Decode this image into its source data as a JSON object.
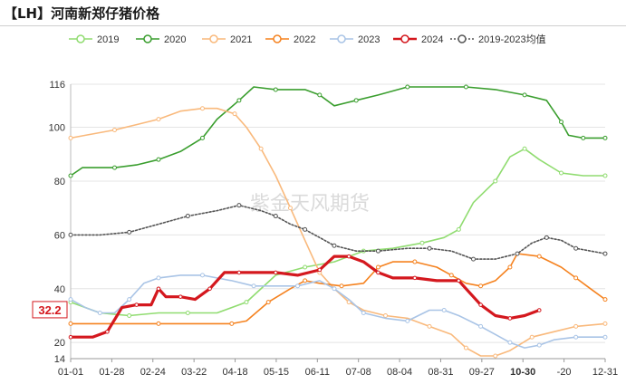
{
  "title": "【LH】河南新郑仔猪价格",
  "watermark": "紫金天风期货",
  "chart_data": {
    "type": "line",
    "title": "【LH】河南新郑仔猪价格",
    "x_ticks": [
      "01-01",
      "01-28",
      "02-24",
      "03-22",
      "04-18",
      "05-15",
      "06-11",
      "07-08",
      "08-04",
      "08-31",
      "09-27",
      "10-30",
      "-20",
      "12-31"
    ],
    "y_ticks": [
      14,
      20,
      40,
      60,
      80,
      100,
      116
    ],
    "ylim": [
      14,
      116
    ],
    "xlim": [
      0,
      365
    ],
    "grid": true,
    "legend_position": "top",
    "series": [
      {
        "name": "2019",
        "color": "#90dc70",
        "dash": false,
        "width": 1.6,
        "points": [
          [
            0,
            35
          ],
          [
            20,
            31
          ],
          [
            40,
            30
          ],
          [
            60,
            31
          ],
          [
            80,
            31
          ],
          [
            100,
            31
          ],
          [
            120,
            35
          ],
          [
            140,
            45
          ],
          [
            160,
            48
          ],
          [
            180,
            50
          ],
          [
            200,
            54
          ],
          [
            220,
            55
          ],
          [
            240,
            57
          ],
          [
            255,
            59
          ],
          [
            265,
            62
          ],
          [
            275,
            72
          ],
          [
            290,
            80
          ],
          [
            300,
            89
          ],
          [
            310,
            92
          ],
          [
            320,
            88
          ],
          [
            335,
            83
          ],
          [
            350,
            82
          ],
          [
            365,
            82
          ]
        ]
      },
      {
        "name": "2020",
        "color": "#3a9e2e",
        "dash": false,
        "width": 1.6,
        "points": [
          [
            0,
            82
          ],
          [
            8,
            85
          ],
          [
            30,
            85
          ],
          [
            45,
            86
          ],
          [
            60,
            88
          ],
          [
            75,
            91
          ],
          [
            90,
            96
          ],
          [
            100,
            103
          ],
          [
            115,
            110
          ],
          [
            125,
            115
          ],
          [
            140,
            114
          ],
          [
            160,
            114
          ],
          [
            170,
            112
          ],
          [
            180,
            108
          ],
          [
            195,
            110
          ],
          [
            210,
            112
          ],
          [
            230,
            115
          ],
          [
            250,
            115
          ],
          [
            270,
            115
          ],
          [
            290,
            114
          ],
          [
            310,
            112
          ],
          [
            325,
            110
          ],
          [
            335,
            102
          ],
          [
            340,
            97
          ],
          [
            350,
            96
          ],
          [
            365,
            96
          ]
        ]
      },
      {
        "name": "2021",
        "color": "#f9b97c",
        "dash": false,
        "width": 1.6,
        "points": [
          [
            0,
            96
          ],
          [
            10,
            97
          ],
          [
            30,
            99
          ],
          [
            45,
            101
          ],
          [
            60,
            103
          ],
          [
            75,
            106
          ],
          [
            90,
            107
          ],
          [
            100,
            107
          ],
          [
            112,
            105
          ],
          [
            120,
            100
          ],
          [
            130,
            92
          ],
          [
            140,
            82
          ],
          [
            150,
            70
          ],
          [
            160,
            58
          ],
          [
            170,
            46
          ],
          [
            180,
            40
          ],
          [
            190,
            35
          ],
          [
            200,
            32
          ],
          [
            215,
            30
          ],
          [
            230,
            29
          ],
          [
            245,
            26
          ],
          [
            260,
            23
          ],
          [
            270,
            18
          ],
          [
            280,
            15
          ],
          [
            290,
            15
          ],
          [
            300,
            17
          ],
          [
            315,
            22
          ],
          [
            330,
            24
          ],
          [
            345,
            26
          ],
          [
            365,
            27
          ]
        ]
      },
      {
        "name": "2022",
        "color": "#f5821f",
        "dash": false,
        "width": 1.6,
        "points": [
          [
            0,
            27
          ],
          [
            30,
            27
          ],
          [
            60,
            27
          ],
          [
            90,
            27
          ],
          [
            110,
            27
          ],
          [
            120,
            28
          ],
          [
            135,
            35
          ],
          [
            150,
            40
          ],
          [
            160,
            43
          ],
          [
            170,
            42
          ],
          [
            185,
            41
          ],
          [
            200,
            42
          ],
          [
            210,
            48
          ],
          [
            220,
            50
          ],
          [
            235,
            50
          ],
          [
            250,
            48
          ],
          [
            260,
            45
          ],
          [
            270,
            42
          ],
          [
            280,
            41
          ],
          [
            290,
            43
          ],
          [
            300,
            48
          ],
          [
            305,
            53
          ],
          [
            320,
            52
          ],
          [
            335,
            48
          ],
          [
            345,
            44
          ],
          [
            355,
            40
          ],
          [
            365,
            36
          ]
        ]
      },
      {
        "name": "2023",
        "color": "#a9c4e6",
        "dash": false,
        "width": 1.6,
        "points": [
          [
            0,
            36
          ],
          [
            10,
            33
          ],
          [
            20,
            31
          ],
          [
            30,
            31
          ],
          [
            40,
            36
          ],
          [
            50,
            42
          ],
          [
            60,
            44
          ],
          [
            75,
            45
          ],
          [
            90,
            45
          ],
          [
            110,
            43
          ],
          [
            125,
            41
          ],
          [
            140,
            41
          ],
          [
            155,
            41
          ],
          [
            170,
            43
          ],
          [
            180,
            40
          ],
          [
            190,
            36
          ],
          [
            200,
            31
          ],
          [
            215,
            29
          ],
          [
            230,
            28
          ],
          [
            245,
            32
          ],
          [
            255,
            32
          ],
          [
            265,
            30
          ],
          [
            280,
            26
          ],
          [
            290,
            23
          ],
          [
            300,
            20
          ],
          [
            310,
            18
          ],
          [
            320,
            19
          ],
          [
            330,
            21
          ],
          [
            345,
            22
          ],
          [
            365,
            22
          ]
        ]
      },
      {
        "name": "2024",
        "color": "#d4181e",
        "dash": false,
        "width": 3.2,
        "points": [
          [
            0,
            22
          ],
          [
            15,
            22
          ],
          [
            25,
            24
          ],
          [
            35,
            33
          ],
          [
            45,
            34
          ],
          [
            55,
            34
          ],
          [
            60,
            40
          ],
          [
            65,
            37
          ],
          [
            75,
            37
          ],
          [
            85,
            36
          ],
          [
            95,
            40
          ],
          [
            105,
            46
          ],
          [
            115,
            46
          ],
          [
            125,
            46
          ],
          [
            140,
            46
          ],
          [
            155,
            45
          ],
          [
            170,
            47
          ],
          [
            180,
            52
          ],
          [
            190,
            52
          ],
          [
            200,
            50
          ],
          [
            210,
            46
          ],
          [
            220,
            44
          ],
          [
            235,
            44
          ],
          [
            250,
            43
          ],
          [
            265,
            43
          ],
          [
            270,
            40
          ],
          [
            280,
            34
          ],
          [
            290,
            30
          ],
          [
            300,
            29
          ],
          [
            310,
            30
          ],
          [
            320,
            32
          ]
        ]
      },
      {
        "name": "2019-2023均值",
        "color": "#555555",
        "dash": true,
        "width": 1.6,
        "points": [
          [
            0,
            60
          ],
          [
            20,
            60
          ],
          [
            40,
            61
          ],
          [
            60,
            64
          ],
          [
            80,
            67
          ],
          [
            100,
            69
          ],
          [
            115,
            71
          ],
          [
            130,
            69
          ],
          [
            140,
            67
          ],
          [
            150,
            64
          ],
          [
            160,
            62
          ],
          [
            170,
            59
          ],
          [
            180,
            56
          ],
          [
            195,
            54
          ],
          [
            210,
            54
          ],
          [
            230,
            55
          ],
          [
            245,
            55
          ],
          [
            260,
            54
          ],
          [
            275,
            51
          ],
          [
            290,
            51
          ],
          [
            305,
            53
          ],
          [
            315,
            57
          ],
          [
            325,
            59
          ],
          [
            335,
            58
          ],
          [
            345,
            55
          ],
          [
            365,
            53
          ]
        ]
      }
    ],
    "annotations": {
      "last_value_label": "32.2",
      "highlight_tick": "10-30"
    }
  }
}
